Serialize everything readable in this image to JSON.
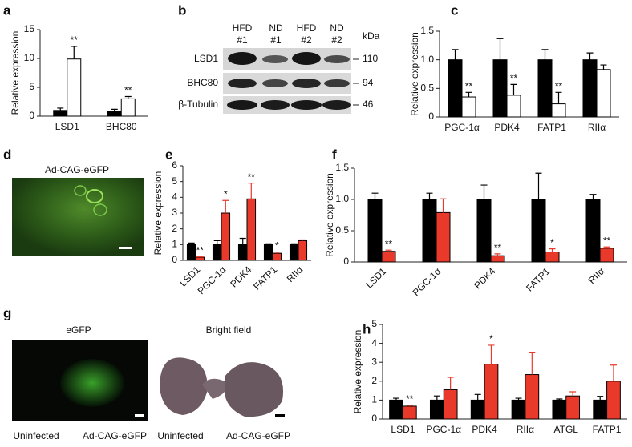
{
  "chart_data": [
    {
      "panel": "a",
      "type": "bar",
      "y_label": "Relative expression",
      "categories": [
        "LSD1",
        "BHC80"
      ],
      "series": [
        {
          "color": "#000000",
          "values": [
            1.0,
            0.9
          ],
          "errors": [
            0.4,
            0.3
          ]
        },
        {
          "color": "#ffffff",
          "values": [
            9.9,
            3.0
          ],
          "errors": [
            2.2,
            0.4
          ],
          "labels": [
            "**",
            "**"
          ]
        }
      ],
      "ylim": [
        0,
        15
      ],
      "yticks": [
        0,
        5,
        10,
        15
      ]
    },
    {
      "panel": "c",
      "type": "bar",
      "y_label": "Relative expression",
      "categories": [
        "PGC-1α",
        "PDK4",
        "FATP1",
        "RIIα"
      ],
      "series": [
        {
          "color": "#000000",
          "values": [
            1,
            1,
            1,
            1
          ],
          "errors": [
            0.18,
            0.37,
            0.18,
            0.12
          ]
        },
        {
          "color": "#ffffff",
          "values": [
            0.35,
            0.38,
            0.23,
            0.83
          ],
          "errors": [
            0.08,
            0.19,
            0.2,
            0.08
          ],
          "labels": [
            "**",
            "**",
            "**",
            null
          ]
        }
      ],
      "ylim": [
        0,
        1.5
      ],
      "yticks": [
        0,
        0.5,
        {
          "value": 1,
          "label": "1.0"
        },
        1.5
      ]
    },
    {
      "panel": "e",
      "type": "bar",
      "y_label": "Relative expression",
      "categories": [
        "LSD1",
        "PGC-1α",
        "PDK4",
        "FATP1",
        "RIIα"
      ],
      "series": [
        {
          "color": "#000000",
          "values": [
            1,
            1,
            1,
            1,
            1
          ],
          "errors": [
            0.1,
            0.25,
            0.4,
            0.05,
            0.05
          ]
        },
        {
          "color": "#e8392b",
          "values": [
            0.2,
            3.0,
            3.9,
            0.45,
            1.25
          ],
          "errors": [
            0.03,
            0.8,
            1.0,
            0.08,
            0.05
          ],
          "labels": [
            "**",
            "*",
            "**",
            "*",
            null
          ]
        }
      ],
      "ylim": [
        0,
        6
      ],
      "yticks": [
        0,
        1,
        2,
        3,
        4,
        5,
        6
      ]
    },
    {
      "panel": "f",
      "type": "bar",
      "y_label": "Relative expression",
      "categories": [
        "LSD1",
        "PGC-1α",
        "PDK4",
        "FATP1",
        "RIIα"
      ],
      "series": [
        {
          "color": "#000000",
          "values": [
            1,
            1,
            1,
            1,
            1
          ],
          "errors": [
            0.1,
            0.1,
            0.23,
            0.42,
            0.08
          ]
        },
        {
          "color": "#e8392b",
          "values": [
            0.17,
            0.79,
            0.1,
            0.16,
            0.22
          ],
          "errors": [
            0.02,
            0.22,
            0.03,
            0.05,
            0.02
          ],
          "labels": [
            "**",
            null,
            "**",
            "*",
            "**"
          ]
        }
      ],
      "ylim": [
        0,
        1.5
      ],
      "yticks": [
        0,
        0.5,
        {
          "value": 1,
          "label": "1.0"
        },
        1.5
      ]
    },
    {
      "panel": "h",
      "type": "bar",
      "y_label": "Relative expression",
      "categories": [
        "LSD1",
        "PGC-1α",
        "PDK4",
        "RIIα",
        "ATGL",
        "FATP1"
      ],
      "series": [
        {
          "color": "#000000",
          "values": [
            1,
            1,
            1,
            1,
            1,
            1
          ],
          "errors": [
            0.1,
            0.22,
            0.3,
            0.1,
            0.06,
            0.2
          ]
        },
        {
          "color": "#e8392b",
          "values": [
            0.68,
            1.55,
            2.9,
            2.35,
            1.22,
            2.0
          ],
          "errors": [
            0.05,
            0.65,
            1.0,
            1.15,
            0.22,
            0.85
          ],
          "labels": [
            "**",
            null,
            "*",
            null,
            null,
            null
          ]
        }
      ],
      "ylim": [
        0,
        5
      ],
      "yticks": [
        0,
        1,
        2,
        3,
        4,
        5
      ]
    }
  ],
  "blot": {
    "panel": "b",
    "columns": [
      [
        "HFD",
        "#1"
      ],
      [
        "ND",
        "#1"
      ],
      [
        "HFD",
        "#2"
      ],
      [
        "ND",
        "#2"
      ]
    ],
    "unit": "kDa",
    "rows": [
      {
        "label": "LSD1",
        "size": "110"
      },
      {
        "label": "BHC80",
        "size": "94"
      },
      {
        "label": "β-Tubulin",
        "size": "46"
      }
    ]
  },
  "image_d": {
    "panel": "d",
    "title": "Ad-CAG-eGFP"
  },
  "image_g": {
    "panel": "g",
    "titles": [
      "eGFP",
      "Bright field"
    ],
    "captions": [
      "Uninfected",
      "Ad-CAG-eGFP",
      "Uninfected",
      "Ad-CAG-eGFP"
    ]
  }
}
